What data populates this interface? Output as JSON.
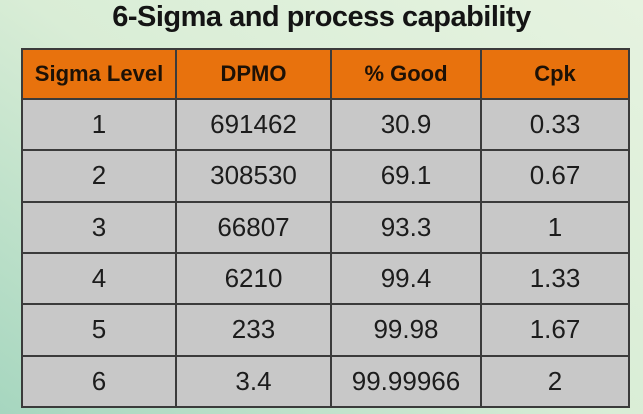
{
  "title": "6-Sigma and process capability",
  "table": {
    "headers": [
      "Sigma Level",
      "DPMO",
      "% Good",
      "Cpk"
    ],
    "column_keys": [
      "sigma-level",
      "dpmo",
      "percent-good",
      "cpk"
    ],
    "rows": [
      [
        "1",
        "691462",
        "30.9",
        "0.33"
      ],
      [
        "2",
        "308530",
        "69.1",
        "0.67"
      ],
      [
        "3",
        "66807",
        "93.3",
        "1"
      ],
      [
        "4",
        "6210",
        "99.4",
        "1.33"
      ],
      [
        "5",
        "233",
        "99.98",
        "1.67"
      ],
      [
        "6",
        "3.4",
        "99.99966",
        "2"
      ]
    ]
  },
  "colors": {
    "header_bg": "#e8720d",
    "header_text": "#1d1106",
    "cell_bg": "#c8c8c8",
    "cell_text": "#1c1c1c",
    "border": "#3b3b3b",
    "background_top": "#e6f3e0",
    "background_bottom": "#a6d6bf"
  }
}
